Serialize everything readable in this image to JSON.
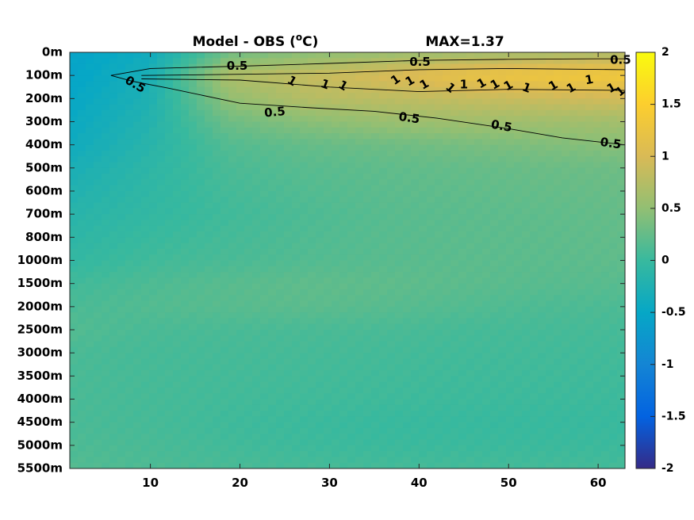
{
  "chart_data": {
    "type": "heatmap",
    "title": "Model - OBS (°C)",
    "title_parts": {
      "prefix": "Model - OBS (",
      "superscript": "o",
      "suffix": "C)"
    },
    "max_label": "MAX=1.37",
    "xlabel": "",
    "ylabel": "",
    "x_ticks": [
      10,
      20,
      30,
      40,
      50,
      60
    ],
    "xlim": [
      1,
      63
    ],
    "y_tick_labels": [
      "0m",
      "100m",
      "200m",
      "300m",
      "400m",
      "500m",
      "600m",
      "700m",
      "800m",
      "1000m",
      "1500m",
      "2000m",
      "2500m",
      "3000m",
      "3500m",
      "4000m",
      "4500m",
      "5000m",
      "5500m"
    ],
    "colorbar": {
      "range": [
        -2,
        2
      ],
      "ticks": [
        "2",
        "1.5",
        "1",
        "0.5",
        "0",
        "-0.5",
        "-1",
        "-1.5",
        "-2"
      ],
      "colormap": "parula"
    },
    "contour_labels": [
      "0.5",
      "0.5",
      "0.5",
      "0.5",
      "0.5",
      "0.5",
      "0.5",
      "0.5",
      "1",
      "1",
      "1",
      "1",
      "1",
      "1",
      "1",
      "1",
      "1",
      "1",
      "1",
      "1",
      "1",
      "1",
      "1",
      "1",
      "1"
    ],
    "field_rows": [
      {
        "depth": "0m",
        "values": [
          -0.55,
          -0.4,
          0.3,
          0.45,
          0.55,
          0.6,
          0.65,
          0.7
        ]
      },
      {
        "depth": "100m",
        "values": [
          -0.55,
          -0.3,
          0.7,
          0.85,
          1.0,
          1.2,
          1.3,
          1.35
        ]
      },
      {
        "depth": "200m",
        "values": [
          -0.5,
          -0.25,
          0.5,
          0.75,
          0.8,
          0.85,
          0.9,
          0.95
        ]
      },
      {
        "depth": "300m",
        "values": [
          -0.45,
          -0.2,
          0.3,
          0.45,
          0.55,
          0.6,
          0.6,
          0.62
        ]
      },
      {
        "depth": "400m",
        "values": [
          -0.4,
          -0.15,
          0.15,
          0.25,
          0.3,
          0.35,
          0.4,
          0.45
        ]
      },
      {
        "depth": "500m",
        "values": [
          -0.3,
          -0.1,
          0.1,
          0.18,
          0.22,
          0.25,
          0.28,
          0.3
        ]
      },
      {
        "depth": "700m",
        "values": [
          -0.15,
          -0.05,
          0.05,
          0.12,
          0.18,
          0.2,
          0.22,
          0.25
        ]
      },
      {
        "depth": "1000m",
        "values": [
          -0.05,
          0.05,
          0.1,
          0.15,
          0.18,
          0.2,
          0.2,
          0.22
        ]
      },
      {
        "depth": "1500m",
        "values": [
          0.05,
          0.12,
          0.18,
          0.22,
          0.22,
          0.2,
          0.18,
          0.18
        ]
      },
      {
        "depth": "2000m",
        "values": [
          0.1,
          0.15,
          0.18,
          0.2,
          0.18,
          0.15,
          0.12,
          0.12
        ]
      },
      {
        "depth": "2500m",
        "values": [
          0.15,
          0.1,
          0.1,
          0.1,
          0.1,
          0.08,
          0.08,
          0.08
        ]
      },
      {
        "depth": "3000m",
        "values": [
          0.1,
          0.08,
          0.08,
          0.08,
          0.07,
          0.06,
          0.06,
          0.06
        ]
      },
      {
        "depth": "4000m",
        "values": [
          0.1,
          0.08,
          0.06,
          0.05,
          0.04,
          0.03,
          0.03,
          0.03
        ]
      },
      {
        "depth": "4500m",
        "values": [
          0.1,
          0.08,
          0.04,
          0.02,
          0.0,
          0.0,
          0.0,
          0.0
        ]
      },
      {
        "depth": "5000m",
        "values": [
          0.12,
          0.1,
          0.06,
          0.03,
          0.02,
          0.02,
          0.02,
          0.02
        ]
      },
      {
        "depth": "5500m",
        "values": [
          0.15,
          0.12,
          0.1,
          0.08,
          0.07,
          0.07,
          0.07,
          0.07
        ]
      }
    ]
  }
}
